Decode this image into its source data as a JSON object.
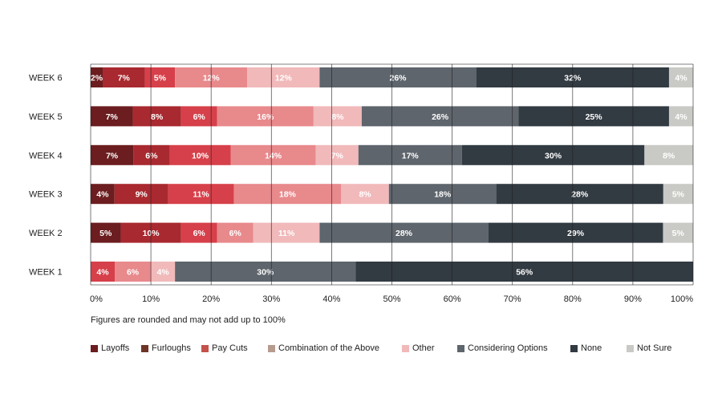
{
  "chart_data": {
    "type": "bar",
    "orientation": "horizontal-stacked",
    "categories": [
      "WEEK 6",
      "WEEK 5",
      "WEEK 4",
      "WEEK 3",
      "WEEK 2",
      "WEEK 1"
    ],
    "xlim": [
      0,
      100
    ],
    "x_ticks": [
      "0%",
      "10%",
      "20%",
      "30%",
      "40%",
      "50%",
      "60%",
      "70%",
      "80%",
      "90%",
      "100%"
    ],
    "grid": true,
    "legend_position": "bottom",
    "series": [
      {
        "name": "Layoffs",
        "color": "#6b1d1f",
        "values": [
          2,
          7,
          7,
          4,
          5,
          0
        ],
        "labels": [
          "2%",
          "7%",
          "7%",
          "4%",
          "5%",
          ""
        ]
      },
      {
        "name": "Furloughs",
        "color": "#a8292f",
        "values": [
          7,
          8,
          6,
          9,
          10,
          0
        ],
        "labels": [
          "7%",
          "8%",
          "6%",
          "9%",
          "10%",
          ""
        ]
      },
      {
        "name": "Pay Cuts",
        "color": "#d6404a",
        "values": [
          5,
          6,
          10,
          11,
          6,
          4
        ],
        "labels": [
          "5%",
          "6%",
          "10%",
          "11%",
          "6%",
          "4%"
        ]
      },
      {
        "name": "Combination of the Above",
        "color": "#e8898c",
        "values": [
          12,
          16,
          14,
          18,
          6,
          6
        ],
        "labels": [
          "12%",
          "16%",
          "14%",
          "18%",
          "6%",
          "6%"
        ]
      },
      {
        "name": "Other",
        "color": "#f1b9ba",
        "values": [
          12,
          8,
          7,
          8,
          11,
          4
        ],
        "labels": [
          "12%",
          "8%",
          "7%",
          "8%",
          "11%",
          "4%"
        ]
      },
      {
        "name": "Considering Options",
        "color": "#5e656c",
        "values": [
          26,
          26,
          17,
          18,
          28,
          30
        ],
        "labels": [
          "26%",
          "26%",
          "17%",
          "18%",
          "28%",
          "30%"
        ]
      },
      {
        "name": "None",
        "color": "#323a42",
        "values": [
          32,
          25,
          30,
          28,
          29,
          56
        ],
        "labels": [
          "32%",
          "25%",
          "30%",
          "28%",
          "29%",
          "56%"
        ]
      },
      {
        "name": "Not Sure",
        "color": "#c9c9c5",
        "values": [
          4,
          4,
          8,
          5,
          5,
          0
        ],
        "labels": [
          "4%",
          "4%",
          "8%",
          "5%",
          "5%",
          ""
        ]
      }
    ],
    "legend_swatch_colors": [
      "#6b1d1f",
      "#6e3527",
      "#c4524a",
      "#b69b8e",
      "#f1b9ba",
      "#5e656c",
      "#323a42",
      "#c9c9c5"
    ]
  },
  "note": "Figures are rounded and may not add up to 100%",
  "legend": [
    {
      "label": "Layoffs"
    },
    {
      "label": "Furloughs"
    },
    {
      "label": "Pay Cuts"
    },
    {
      "label": "Combination of the Above"
    },
    {
      "label": "Other"
    },
    {
      "label": "Considering Options"
    },
    {
      "label": "None"
    },
    {
      "label": "Not Sure"
    }
  ]
}
